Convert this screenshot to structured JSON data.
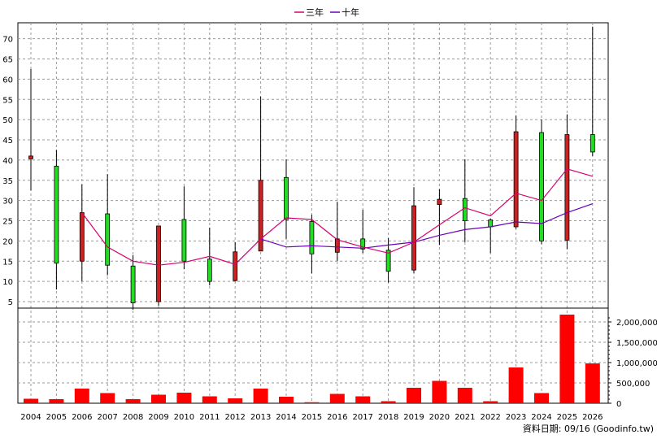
{
  "chart_data": {
    "type": "candlestick+volume",
    "legend": [
      {
        "name": "三年",
        "color": "#d6006e"
      },
      {
        "name": "十年",
        "color": "#6a00b8"
      }
    ],
    "years": [
      "2004",
      "2005",
      "2006",
      "2007",
      "2008",
      "2009",
      "2010",
      "2011",
      "2012",
      "2013",
      "2014",
      "2015",
      "2016",
      "2017",
      "2018",
      "2019",
      "2020",
      "2021",
      "2022",
      "2023",
      "2024",
      "2025",
      "2026"
    ],
    "price_axis": {
      "min": 2.5,
      "max": 73,
      "ticks": [
        5,
        10,
        15,
        20,
        25,
        30,
        35,
        40,
        45,
        50,
        55,
        60,
        65,
        70
      ]
    },
    "candles": [
      {
        "year": "2004",
        "open": 41,
        "high": 62.5,
        "low": 32.5,
        "close": 40.3
      },
      {
        "year": "2005",
        "open": 14.5,
        "high": 42.5,
        "low": 8,
        "close": 38.5
      },
      {
        "year": "2006",
        "open": 27,
        "high": 34,
        "low": 10,
        "close": 15
      },
      {
        "year": "2007",
        "open": 14,
        "high": 36.5,
        "low": 11.5,
        "close": 26.7
      },
      {
        "year": "2008",
        "open": 4.7,
        "high": 16.5,
        "low": 3,
        "close": 13.8
      },
      {
        "year": "2009",
        "open": 23.7,
        "high": 23.7,
        "low": 4,
        "close": 5
      },
      {
        "year": "2010",
        "open": 15,
        "high": 33.5,
        "low": 13,
        "close": 25.3
      },
      {
        "year": "2011",
        "open": 10,
        "high": 23.3,
        "low": 9,
        "close": 15.5
      },
      {
        "year": "2012",
        "open": 17.3,
        "high": 19.7,
        "low": 10,
        "close": 10.2
      },
      {
        "year": "2013",
        "open": 35,
        "high": 55.7,
        "low": 17.5,
        "close": 17.5
      },
      {
        "year": "2014",
        "open": 25.3,
        "high": 40.2,
        "low": 20.5,
        "close": 35.7
      },
      {
        "year": "2015",
        "open": 16.8,
        "high": 26.5,
        "low": 12,
        "close": 24.8
      },
      {
        "year": "2016",
        "open": 20.5,
        "high": 29.7,
        "low": 15,
        "close": 17.2
      },
      {
        "year": "2017",
        "open": 18,
        "high": 27.7,
        "low": 17,
        "close": 20.5
      },
      {
        "year": "2018",
        "open": 12.5,
        "high": 20.7,
        "low": 9.7,
        "close": 17.7
      },
      {
        "year": "2019",
        "open": 28.7,
        "high": 33.3,
        "low": 12,
        "close": 12.8
      },
      {
        "year": "2020",
        "open": 30.3,
        "high": 32.8,
        "low": 19,
        "close": 29
      },
      {
        "year": "2021",
        "open": 25,
        "high": 40.2,
        "low": 19.7,
        "close": 30.5
      },
      {
        "year": "2022",
        "open": 23.5,
        "high": 25.5,
        "low": 17,
        "close": 25.2
      },
      {
        "year": "2023",
        "open": 47,
        "high": 51,
        "low": 23,
        "close": 23.5
      },
      {
        "year": "2024",
        "open": 20,
        "high": 50,
        "low": 19.2,
        "close": 46.8
      },
      {
        "year": "2025",
        "open": 46.3,
        "high": 51.3,
        "low": 18,
        "close": 20.2
      },
      {
        "year": "2026",
        "open": 42,
        "high": 73,
        "low": 41,
        "close": 46.3
      }
    ],
    "ma3": [
      {
        "year": "2006",
        "value": 27
      },
      {
        "year": "2007",
        "value": 18.5
      },
      {
        "year": "2008",
        "value": 15
      },
      {
        "year": "2009",
        "value": 14
      },
      {
        "year": "2010",
        "value": 14.7
      },
      {
        "year": "2011",
        "value": 16.2
      },
      {
        "year": "2012",
        "value": 14.2
      },
      {
        "year": "2013",
        "value": 20.5
      },
      {
        "year": "2014",
        "value": 25.7
      },
      {
        "year": "2015",
        "value": 25.3
      },
      {
        "year": "2016",
        "value": 20.3
      },
      {
        "year": "2017",
        "value": 18.5
      },
      {
        "year": "2018",
        "value": 17
      },
      {
        "year": "2019",
        "value": 19.7
      },
      {
        "year": "2020",
        "value": 24
      },
      {
        "year": "2021",
        "value": 28.2
      },
      {
        "year": "2022",
        "value": 26.2
      },
      {
        "year": "2023",
        "value": 31.8
      },
      {
        "year": "2024",
        "value": 30
      },
      {
        "year": "2025",
        "value": 37.8
      },
      {
        "year": "2026",
        "value": 36
      }
    ],
    "ma10": [
      {
        "year": "2013",
        "value": 20.5
      },
      {
        "year": "2014",
        "value": 18.5
      },
      {
        "year": "2015",
        "value": 18.8
      },
      {
        "year": "2016",
        "value": 18.5
      },
      {
        "year": "2017",
        "value": 18.2
      },
      {
        "year": "2018",
        "value": 19
      },
      {
        "year": "2019",
        "value": 19.7
      },
      {
        "year": "2020",
        "value": 21.4
      },
      {
        "year": "2021",
        "value": 22.8
      },
      {
        "year": "2022",
        "value": 23.5
      },
      {
        "year": "2023",
        "value": 24.7
      },
      {
        "year": "2024",
        "value": 24.3
      },
      {
        "year": "2025",
        "value": 27
      },
      {
        "year": "2026",
        "value": 29.2
      }
    ],
    "volume_axis": {
      "min": 0,
      "max": 2200000,
      "ticks": [
        "0",
        "500,000",
        "1,000,000",
        "1,500,000",
        "2,000,000"
      ],
      "tick_values": [
        0,
        500000,
        1000000,
        1500000,
        2000000
      ]
    },
    "volume": [
      110000,
      100000,
      360000,
      250000,
      100000,
      210000,
      260000,
      170000,
      120000,
      360000,
      160000,
      25000,
      230000,
      170000,
      50000,
      380000,
      550000,
      380000,
      50000,
      880000,
      250000,
      2180000,
      980000
    ]
  },
  "footer": "資料日期: 09/16  (Goodinfo.tw)"
}
